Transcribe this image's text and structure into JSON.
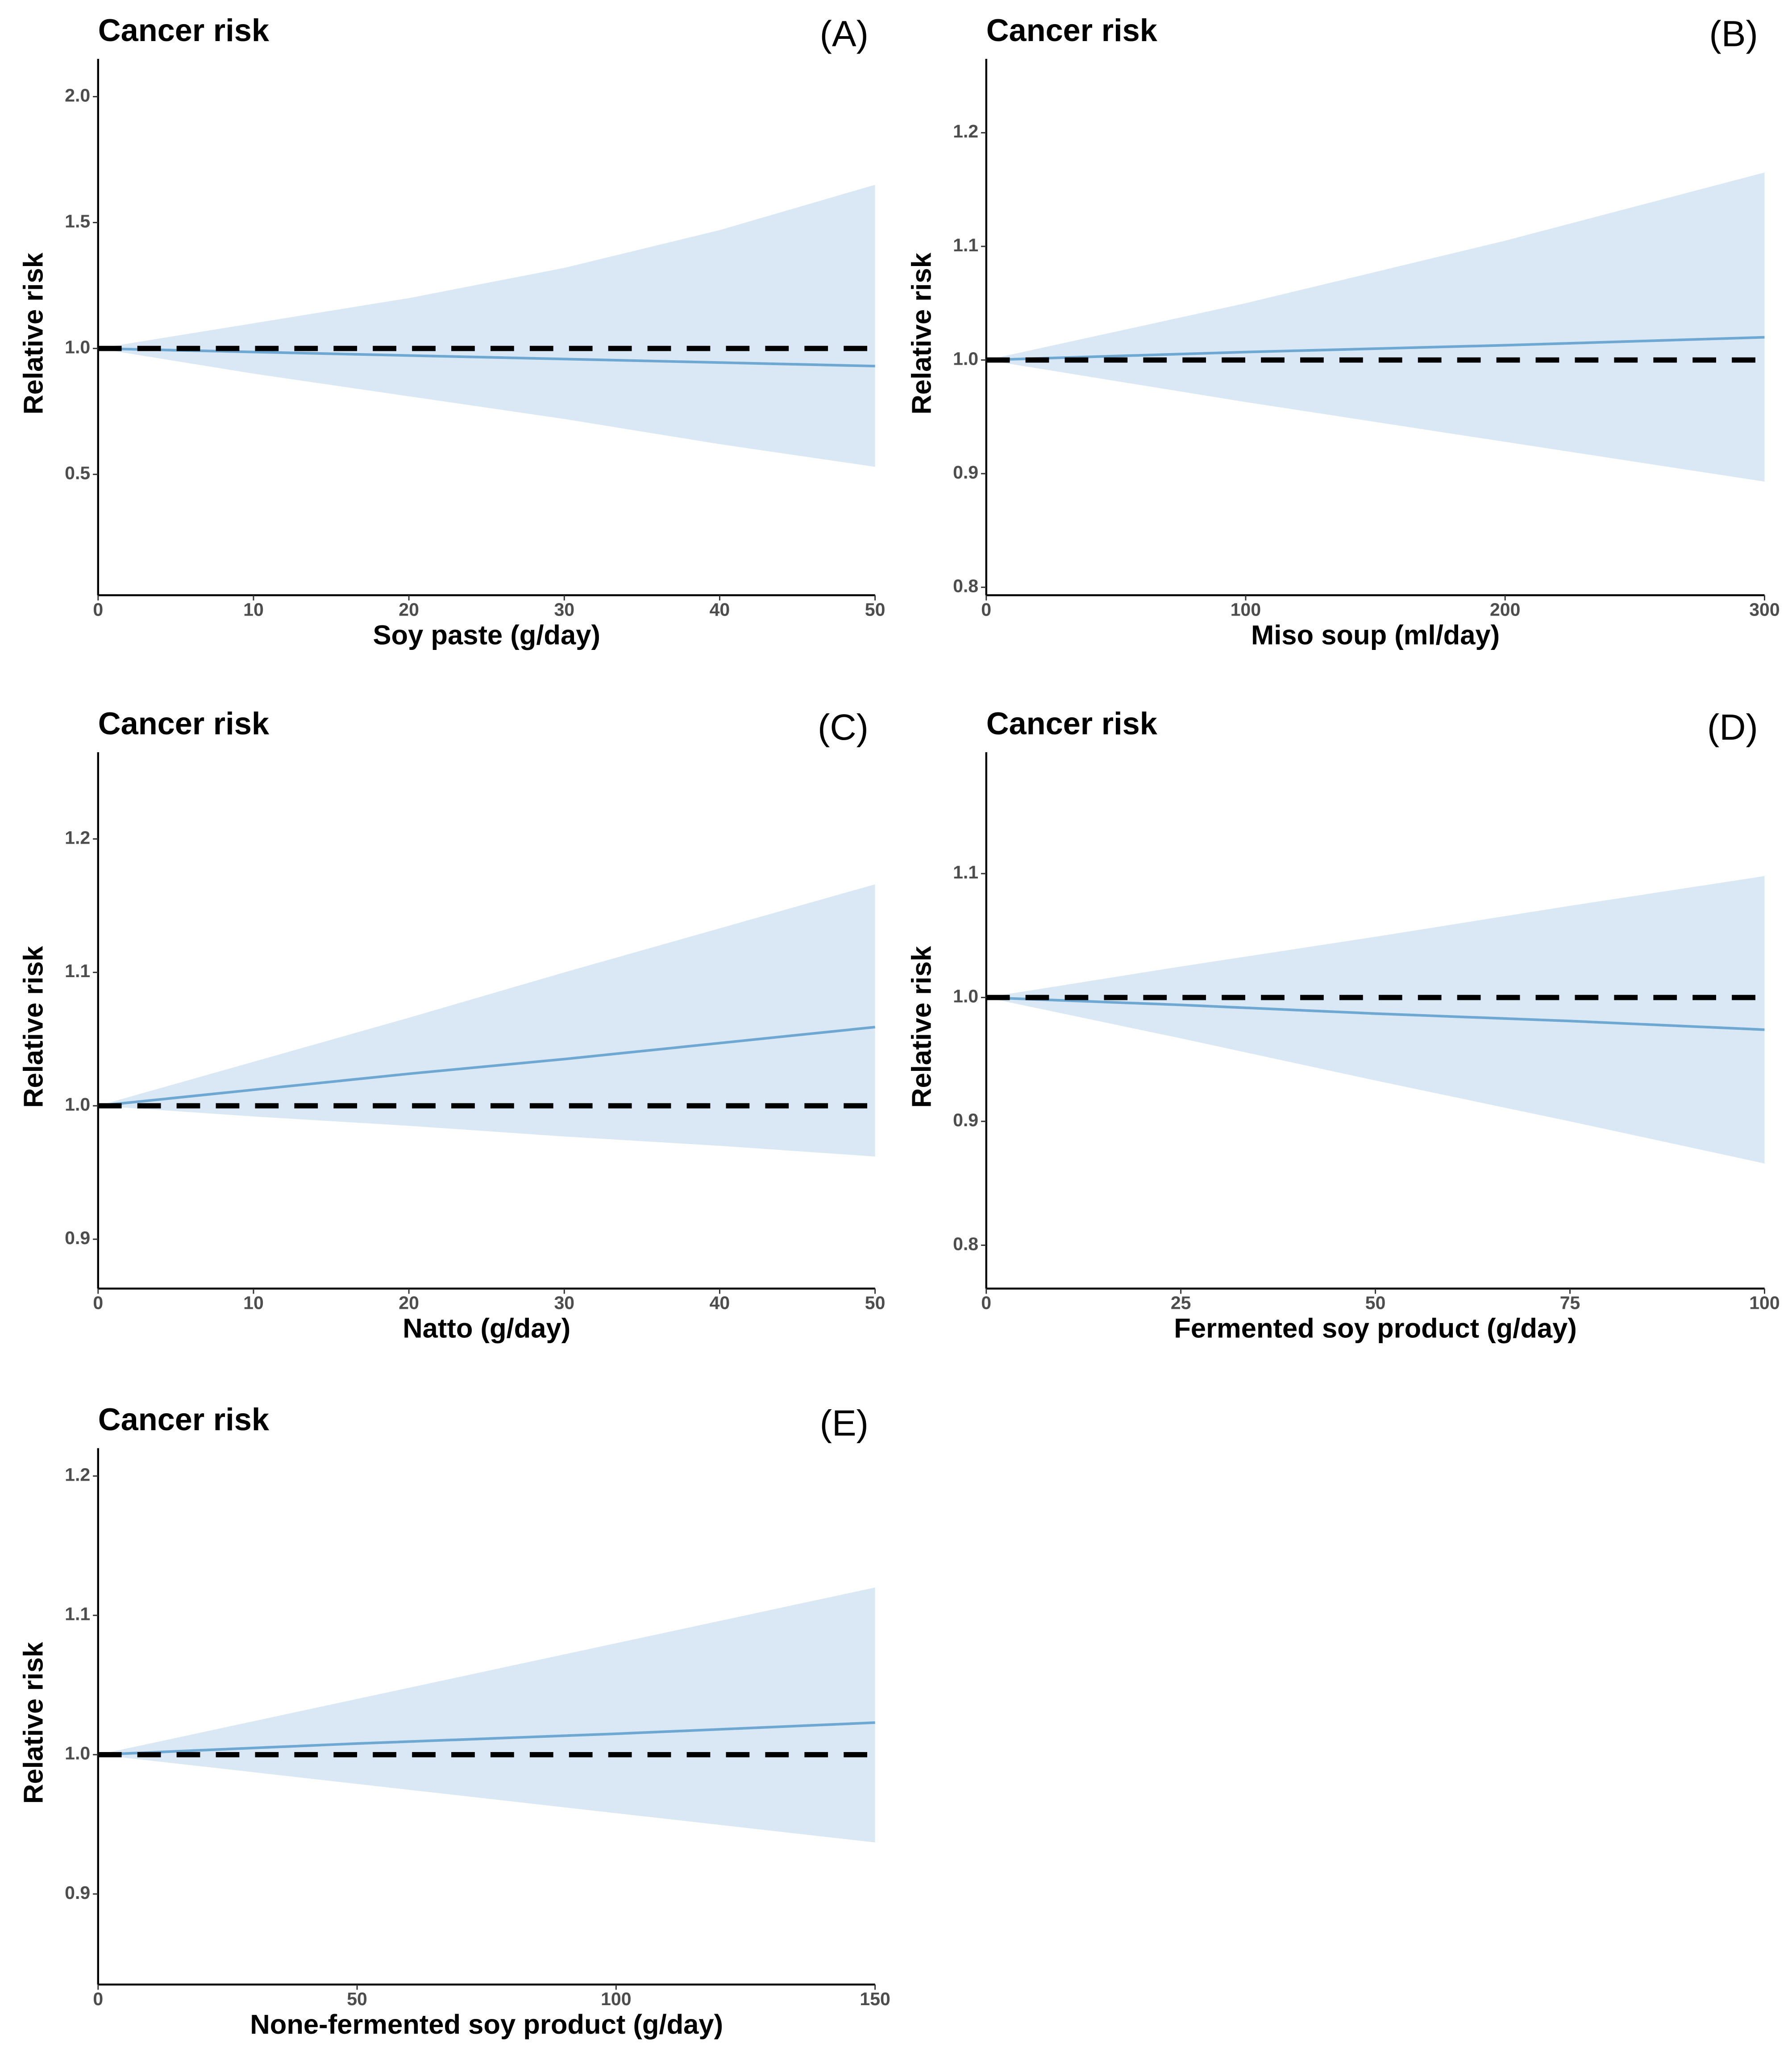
{
  "chart_data": [
    {
      "type": "line",
      "title": "Cancer risk",
      "panel": "(A)",
      "x_label": "Soy paste (g/day)",
      "y_label": "Relative risk",
      "xlim": [
        0,
        50
      ],
      "xticks": [
        0,
        10,
        20,
        30,
        40,
        50
      ],
      "ylim": [
        0.02,
        2.15
      ],
      "yticks": [
        0.5,
        {
          "value": 1,
          "label": "1.0"
        },
        1.5,
        {
          "value": 2,
          "label": "2.0"
        }
      ],
      "x": [
        0,
        10,
        20,
        30,
        40,
        50
      ],
      "values": [
        1,
        0.986,
        0.972,
        0.958,
        0.944,
        0.93
      ],
      "ci_upper": [
        1,
        1.1,
        1.2,
        1.32,
        1.47,
        1.65
      ],
      "ci_lower": [
        1,
        0.9,
        0.81,
        0.72,
        0.62,
        0.53
      ],
      "reference": 1,
      "color": "#6ea8d2",
      "band_color": "#d9e8f4"
    },
    {
      "type": "line",
      "title": "Cancer risk",
      "panel": "(B)",
      "x_label": "Miso soup (ml/day)",
      "y_label": "Relative risk",
      "xlim": [
        0,
        300
      ],
      "xticks": [
        0,
        100,
        200,
        300
      ],
      "ylim": [
        0.793,
        1.265
      ],
      "yticks": [
        0.8,
        0.9,
        {
          "value": 1,
          "label": "1.0"
        },
        1.1,
        1.2
      ],
      "x": [
        0,
        100,
        200,
        300
      ],
      "values": [
        1,
        1.007,
        1.013,
        1.02
      ],
      "ci_upper": [
        1,
        1.05,
        1.105,
        1.165
      ],
      "ci_lower": [
        1,
        0.963,
        0.928,
        0.893
      ],
      "reference": 1,
      "color": "#6ea8d2",
      "band_color": "#d9e8f4"
    },
    {
      "type": "line",
      "title": "Cancer risk",
      "panel": "(C)",
      "x_label": "Natto (g/day)",
      "y_label": "Relative risk",
      "xlim": [
        0,
        50
      ],
      "xticks": [
        0,
        10,
        20,
        30,
        40,
        50
      ],
      "ylim": [
        0.863,
        1.265
      ],
      "yticks": [
        0.9,
        {
          "value": 1,
          "label": "1.0"
        },
        1.1,
        1.2
      ],
      "x": [
        0,
        10,
        20,
        30,
        40,
        50
      ],
      "values": [
        1,
        1.012,
        1.024,
        1.035,
        1.047,
        1.059
      ],
      "ci_upper": [
        1,
        1.033,
        1.066,
        1.1,
        1.133,
        1.166
      ],
      "ci_lower": [
        1,
        0.992,
        0.985,
        0.977,
        0.97,
        0.962
      ],
      "reference": 1,
      "color": "#6ea8d2",
      "band_color": "#d9e8f4"
    },
    {
      "type": "line",
      "title": "Cancer risk",
      "panel": "(D)",
      "x_label": "Fermented soy product (g/day)",
      "y_label": "Relative risk",
      "xlim": [
        0,
        100
      ],
      "xticks": [
        0,
        25,
        50,
        75,
        100
      ],
      "ylim": [
        0.765,
        1.198
      ],
      "yticks": [
        0.8,
        0.9,
        {
          "value": 1,
          "label": "1.0"
        },
        1.1
      ],
      "x": [
        0,
        25,
        50,
        75,
        100
      ],
      "values": [
        1,
        0.994,
        0.987,
        0.981,
        0.974
      ],
      "ci_upper": [
        1,
        1.025,
        1.049,
        1.074,
        1.098
      ],
      "ci_lower": [
        1,
        0.967,
        0.933,
        0.9,
        0.866
      ],
      "reference": 1,
      "color": "#6ea8d2",
      "band_color": "#d9e8f4"
    },
    {
      "type": "line",
      "title": "Cancer risk",
      "panel": "(E)",
      "x_label": "None-fermented soy product (g/day)",
      "y_label": "Relative risk",
      "xlim": [
        0,
        150
      ],
      "xticks": [
        0,
        50,
        100,
        150
      ],
      "ylim": [
        0.835,
        1.22
      ],
      "yticks": [
        0.9,
        {
          "value": 1,
          "label": "1.0"
        },
        1.1,
        1.2
      ],
      "x": [
        0,
        50,
        100,
        150
      ],
      "values": [
        1,
        1.008,
        1.015,
        1.023
      ],
      "ci_upper": [
        1,
        1.04,
        1.08,
        1.12
      ],
      "ci_lower": [
        1,
        0.979,
        0.958,
        0.937
      ],
      "reference": 1,
      "color": "#6ea8d2",
      "band_color": "#d9e8f4"
    }
  ]
}
